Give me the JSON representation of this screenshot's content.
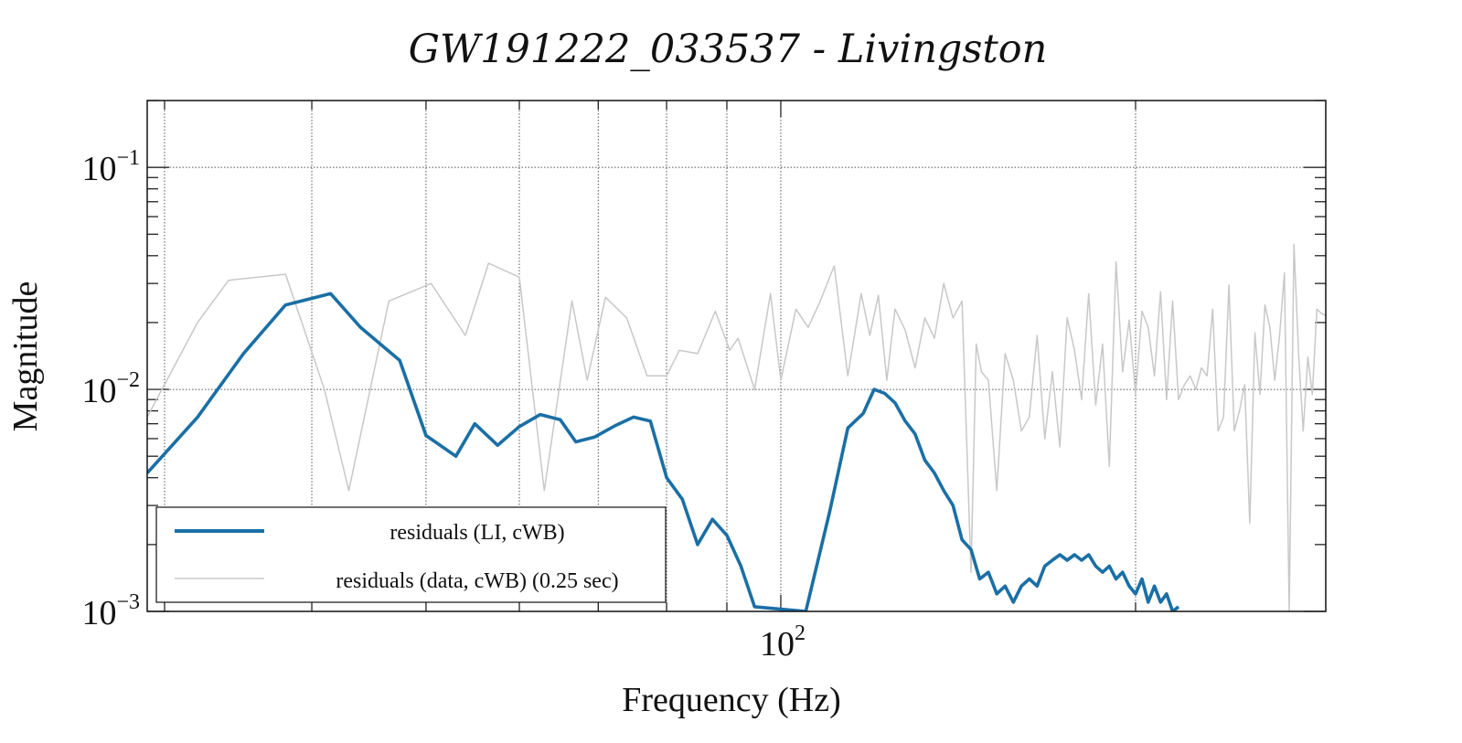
{
  "chart_data": {
    "type": "line",
    "title": "GW191222_033537 - Livingston",
    "xlabel": "Frequency (Hz)",
    "ylabel": "Magnitude",
    "x_scale": "log",
    "y_scale": "log",
    "xlim": [
      29,
      290
    ],
    "ylim": [
      0.001,
      0.2
    ],
    "x_tick_labels": [
      {
        "base": "10",
        "exp": "2",
        "value": 100
      }
    ],
    "y_tick_labels": [
      {
        "base": "10",
        "exp": "−3",
        "value": 0.001
      },
      {
        "base": "10",
        "exp": "−2",
        "value": 0.01
      },
      {
        "base": "10",
        "exp": "−1",
        "value": 0.1
      }
    ],
    "grid": true,
    "legend_position": "bottom-left",
    "series": [
      {
        "name": "residuals (LI, cWB)",
        "color": "#1a6fa5",
        "points": [
          [
            29,
            0.0042
          ],
          [
            32,
            0.0075
          ],
          [
            35,
            0.0145
          ],
          [
            38,
            0.024
          ],
          [
            41.5,
            0.027
          ],
          [
            44,
            0.019
          ],
          [
            47.5,
            0.0135
          ],
          [
            50,
            0.0062
          ],
          [
            53,
            0.005
          ],
          [
            55,
            0.007
          ],
          [
            57.5,
            0.0056
          ],
          [
            60,
            0.0068
          ],
          [
            62.5,
            0.0077
          ],
          [
            65,
            0.0073
          ],
          [
            67,
            0.0058
          ],
          [
            69.5,
            0.0061
          ],
          [
            72.5,
            0.0069
          ],
          [
            75,
            0.0075
          ],
          [
            77.5,
            0.0072
          ],
          [
            80,
            0.004
          ],
          [
            82.5,
            0.0032
          ],
          [
            85,
            0.002
          ],
          [
            87.5,
            0.0026
          ],
          [
            90,
            0.0022
          ],
          [
            92.5,
            0.0016
          ],
          [
            95,
            0.00105
          ],
          [
            105,
            0.001
          ],
          [
            110,
            0.0028
          ],
          [
            114,
            0.0067
          ],
          [
            117.5,
            0.0078
          ],
          [
            120,
            0.01
          ],
          [
            122.5,
            0.0096
          ],
          [
            125,
            0.0087
          ],
          [
            127.5,
            0.0072
          ],
          [
            130,
            0.0063
          ],
          [
            132.5,
            0.0048
          ],
          [
            135,
            0.0042
          ],
          [
            137.5,
            0.0035
          ],
          [
            140,
            0.003
          ],
          [
            142.5,
            0.0021
          ],
          [
            145,
            0.0019
          ],
          [
            147.5,
            0.0014
          ],
          [
            150,
            0.0015
          ],
          [
            152.5,
            0.0012
          ],
          [
            155,
            0.0013
          ],
          [
            157.5,
            0.0011
          ],
          [
            160,
            0.0013
          ],
          [
            162.5,
            0.0014
          ],
          [
            165,
            0.0013
          ],
          [
            167.5,
            0.0016
          ],
          [
            170,
            0.0017
          ],
          [
            172.5,
            0.0018
          ],
          [
            175,
            0.0017
          ],
          [
            177.5,
            0.0018
          ],
          [
            180,
            0.0017
          ],
          [
            182.5,
            0.0018
          ],
          [
            185,
            0.0016
          ],
          [
            187.5,
            0.0015
          ],
          [
            190,
            0.0016
          ],
          [
            192.5,
            0.0014
          ],
          [
            195,
            0.0015
          ],
          [
            197.5,
            0.0013
          ],
          [
            200,
            0.0012
          ],
          [
            202.5,
            0.0014
          ],
          [
            205,
            0.0011
          ],
          [
            207.5,
            0.0013
          ],
          [
            210,
            0.0011
          ],
          [
            212.5,
            0.0012
          ],
          [
            215,
            0.001
          ],
          [
            217.5,
            0.00105
          ]
        ]
      },
      {
        "name": "residuals (data, cWB) (0.25 sec)",
        "color": "#c8c8c8",
        "points": [
          [
            29,
            0.0075
          ],
          [
            32,
            0.02
          ],
          [
            34,
            0.031
          ],
          [
            38,
            0.033
          ],
          [
            41,
            0.01
          ],
          [
            43,
            0.0035
          ],
          [
            46.5,
            0.025
          ],
          [
            50.5,
            0.03
          ],
          [
            54,
            0.0175
          ],
          [
            56.5,
            0.037
          ],
          [
            60,
            0.032
          ],
          [
            63,
            0.0035
          ],
          [
            66.5,
            0.025
          ],
          [
            68.5,
            0.011
          ],
          [
            71,
            0.026
          ],
          [
            74,
            0.021
          ],
          [
            77,
            0.0115
          ],
          [
            80,
            0.0115
          ],
          [
            82,
            0.015
          ],
          [
            85,
            0.0145
          ],
          [
            88,
            0.0225
          ],
          [
            90.5,
            0.015
          ],
          [
            92,
            0.017
          ],
          [
            95,
            0.01
          ],
          [
            98,
            0.027
          ],
          [
            100,
            0.011
          ],
          [
            103,
            0.023
          ],
          [
            105.5,
            0.019
          ],
          [
            108,
            0.025
          ],
          [
            111,
            0.036
          ],
          [
            114,
            0.0115
          ],
          [
            117,
            0.027
          ],
          [
            119,
            0.0175
          ],
          [
            121,
            0.0265
          ],
          [
            123,
            0.011
          ],
          [
            125,
            0.023
          ],
          [
            127.5,
            0.0185
          ],
          [
            130,
            0.0125
          ],
          [
            132.5,
            0.021
          ],
          [
            135,
            0.017
          ],
          [
            137.5,
            0.03
          ],
          [
            140,
            0.021
          ],
          [
            142.5,
            0.025
          ],
          [
            145,
            0.0015
          ],
          [
            146.5,
            0.016
          ],
          [
            148,
            0.012
          ],
          [
            150,
            0.011
          ],
          [
            152.5,
            0.0035
          ],
          [
            155,
            0.0145
          ],
          [
            157.5,
            0.011
          ],
          [
            160,
            0.0065
          ],
          [
            162.5,
            0.0075
          ],
          [
            165,
            0.0175
          ],
          [
            167.5,
            0.006
          ],
          [
            170,
            0.012
          ],
          [
            172.5,
            0.0055
          ],
          [
            175,
            0.021
          ],
          [
            177.5,
            0.015
          ],
          [
            180,
            0.009
          ],
          [
            182.5,
            0.027
          ],
          [
            185,
            0.0085
          ],
          [
            187.5,
            0.016
          ],
          [
            190,
            0.0045
          ],
          [
            192.5,
            0.0375
          ],
          [
            195,
            0.012
          ],
          [
            197.5,
            0.0205
          ],
          [
            200,
            0.0095
          ],
          [
            202.5,
            0.0225
          ],
          [
            205,
            0.019
          ],
          [
            207.5,
            0.0115
          ],
          [
            210,
            0.0275
          ],
          [
            212.5,
            0.009
          ],
          [
            215,
            0.025
          ],
          [
            217.5,
            0.009
          ],
          [
            220,
            0.0105
          ],
          [
            222.5,
            0.0115
          ],
          [
            225,
            0.01
          ],
          [
            227.5,
            0.0125
          ],
          [
            230,
            0.0115
          ],
          [
            232.5,
            0.023
          ],
          [
            235,
            0.0065
          ],
          [
            237.5,
            0.0075
          ],
          [
            240,
            0.0295
          ],
          [
            242.5,
            0.0065
          ],
          [
            245,
            0.008
          ],
          [
            247.5,
            0.0105
          ],
          [
            250,
            0.0025
          ],
          [
            252.5,
            0.018
          ],
          [
            255,
            0.0095
          ],
          [
            257.5,
            0.024
          ],
          [
            260,
            0.019
          ],
          [
            262.5,
            0.011
          ],
          [
            265,
            0.0175
          ],
          [
            267.5,
            0.0335
          ],
          [
            270,
            0.001
          ],
          [
            272.5,
            0.045
          ],
          [
            275,
            0.0145
          ],
          [
            277.5,
            0.0065
          ],
          [
            280,
            0.014
          ],
          [
            282.5,
            0.0095
          ],
          [
            285,
            0.023
          ],
          [
            287.5,
            0.022
          ],
          [
            290,
            0.0215
          ]
        ]
      }
    ]
  }
}
